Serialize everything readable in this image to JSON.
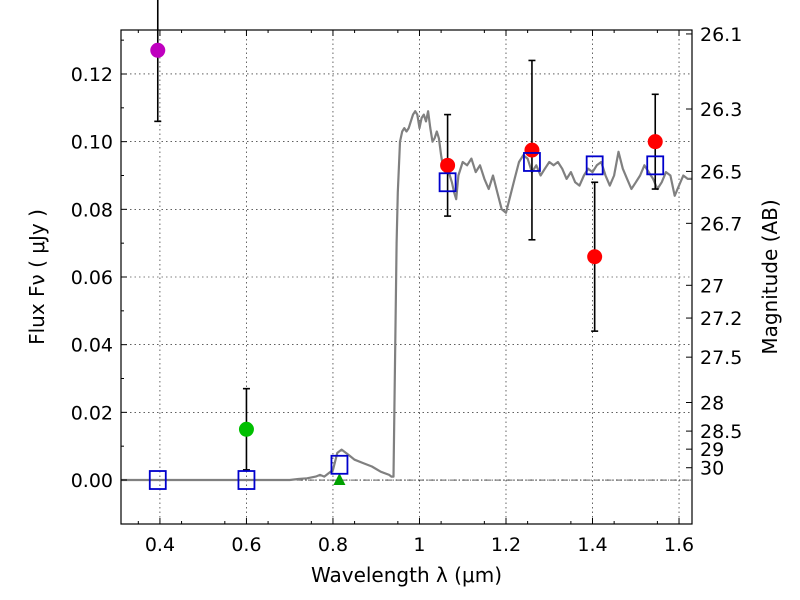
{
  "chart_data": {
    "type": "scatter",
    "title": "",
    "xlabel": "Wavelength  λ (μm)",
    "ylabel": "Flux  Fν  ( μJy )",
    "ylabel_right": "Magnitude (AB)",
    "xlim": [
      0.31,
      1.63
    ],
    "ylim": [
      -0.013,
      0.133
    ],
    "grid": true,
    "x_ticks": [
      0.4,
      0.6,
      0.8,
      1.0,
      1.2,
      1.4,
      1.6
    ],
    "x_tick_labels": [
      "0.4",
      "0.6",
      "0.8",
      "1",
      "1.2",
      "1.4",
      "1.6"
    ],
    "y_ticks": [
      0.0,
      0.02,
      0.04,
      0.06,
      0.08,
      0.1,
      0.12
    ],
    "y_tick_labels": [
      "0.00",
      "0.02",
      "0.04",
      "0.06",
      "0.08",
      "0.10",
      "0.12"
    ],
    "right_ticks": [
      {
        "label": "26.1",
        "mag": 26.1
      },
      {
        "label": "26.3",
        "mag": 26.3
      },
      {
        "label": "26.5",
        "mag": 26.5
      },
      {
        "label": "26.7",
        "mag": 26.7
      },
      {
        "label": "27",
        "mag": 27.0
      },
      {
        "label": "27.2",
        "mag": 27.2
      },
      {
        "label": "27.5",
        "mag": 27.5
      },
      {
        "label": "28",
        "mag": 28.0
      },
      {
        "label": "28.5",
        "mag": 28.5
      },
      {
        "label": "29",
        "mag": 29.0
      },
      {
        "label": "30",
        "mag": 30.0
      }
    ],
    "series": [
      {
        "name": "model-spectrum",
        "kind": "line",
        "color": "#808080",
        "x": [
          0.31,
          0.5,
          0.7,
          0.72,
          0.74,
          0.76,
          0.77,
          0.78,
          0.79,
          0.8,
          0.81,
          0.82,
          0.83,
          0.84,
          0.85,
          0.87,
          0.89,
          0.91,
          0.93,
          0.935,
          0.94,
          0.943,
          0.947,
          0.95,
          0.955,
          0.96,
          0.965,
          0.97,
          0.975,
          0.98,
          0.985,
          0.99,
          0.995,
          1.0,
          1.005,
          1.01,
          1.015,
          1.02,
          1.025,
          1.03,
          1.035,
          1.04,
          1.045,
          1.05,
          1.055,
          1.06,
          1.065,
          1.07,
          1.075,
          1.08,
          1.085,
          1.09,
          1.1,
          1.11,
          1.12,
          1.13,
          1.14,
          1.15,
          1.16,
          1.17,
          1.18,
          1.19,
          1.2,
          1.21,
          1.22,
          1.23,
          1.24,
          1.25,
          1.26,
          1.27,
          1.28,
          1.29,
          1.3,
          1.31,
          1.32,
          1.33,
          1.34,
          1.35,
          1.36,
          1.37,
          1.38,
          1.39,
          1.4,
          1.41,
          1.42,
          1.43,
          1.44,
          1.45,
          1.46,
          1.47,
          1.48,
          1.49,
          1.5,
          1.51,
          1.52,
          1.53,
          1.54,
          1.55,
          1.56,
          1.57,
          1.58,
          1.59,
          1.6,
          1.61,
          1.62,
          1.63
        ],
        "y": [
          0.0,
          0.0,
          0.0,
          0.0003,
          0.0005,
          0.001,
          0.0015,
          0.001,
          0.002,
          0.003,
          0.008,
          0.009,
          0.008,
          0.007,
          0.006,
          0.005,
          0.004,
          0.0025,
          0.0015,
          0.001,
          0.001,
          0.03,
          0.07,
          0.085,
          0.1,
          0.103,
          0.104,
          0.103,
          0.104,
          0.106,
          0.108,
          0.109,
          0.108,
          0.104,
          0.107,
          0.108,
          0.106,
          0.109,
          0.104,
          0.1,
          0.101,
          0.103,
          0.101,
          0.096,
          0.092,
          0.091,
          0.094,
          0.09,
          0.088,
          0.085,
          0.083,
          0.09,
          0.094,
          0.093,
          0.095,
          0.091,
          0.093,
          0.089,
          0.086,
          0.09,
          0.085,
          0.08,
          0.079,
          0.084,
          0.089,
          0.094,
          0.096,
          0.095,
          0.091,
          0.093,
          0.09,
          0.092,
          0.094,
          0.093,
          0.094,
          0.092,
          0.089,
          0.091,
          0.088,
          0.087,
          0.09,
          0.092,
          0.091,
          0.093,
          0.094,
          0.09,
          0.087,
          0.09,
          0.097,
          0.092,
          0.089,
          0.086,
          0.088,
          0.09,
          0.093,
          0.091,
          0.089,
          0.086,
          0.088,
          0.091,
          0.09,
          0.084,
          0.087,
          0.09,
          0.089,
          0.089
        ]
      },
      {
        "name": "model-synthetic-photometry",
        "kind": "open-square",
        "color": "#0000cc",
        "x": [
          0.395,
          0.6,
          0.815,
          1.065,
          1.26,
          1.405,
          1.545
        ],
        "y": [
          0.0,
          0.0,
          0.0045,
          0.088,
          0.094,
          0.093,
          0.093
        ]
      },
      {
        "name": "observed-detections",
        "kind": "point-errorbar",
        "points": [
          {
            "x": 0.395,
            "y": 0.127,
            "yerr": 0.021,
            "color": "#bf00bf"
          },
          {
            "x": 0.6,
            "y": 0.015,
            "yerr": 0.012,
            "color": "#00bf00"
          },
          {
            "x": 1.065,
            "y": 0.093,
            "yerr": 0.015,
            "color": "#ff0000"
          },
          {
            "x": 1.26,
            "y": 0.0975,
            "yerr": 0.0265,
            "color": "#ff0000"
          },
          {
            "x": 1.405,
            "y": 0.066,
            "yerr": 0.022,
            "color": "#ff0000"
          },
          {
            "x": 1.545,
            "y": 0.1,
            "yerr": 0.014,
            "color": "#ff0000"
          }
        ]
      },
      {
        "name": "observed-upper-limit",
        "kind": "triangle",
        "color": "#00a000",
        "x": [
          0.815
        ],
        "y": [
          0.0
        ]
      }
    ]
  }
}
